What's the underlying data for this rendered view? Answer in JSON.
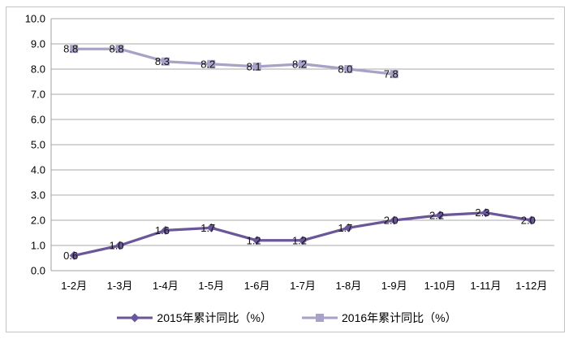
{
  "chart_data": {
    "type": "line",
    "title": "",
    "xlabel": "",
    "ylabel": "",
    "categories": [
      "1-2月",
      "1-3月",
      "1-4月",
      "1-5月",
      "1-6月",
      "1-7月",
      "1-8月",
      "1-9月",
      "1-10月",
      "1-11月",
      "1-12月"
    ],
    "series": [
      {
        "name": "2015年累计同比（%）",
        "values": [
          0.6,
          1.0,
          1.6,
          1.7,
          1.2,
          1.2,
          1.7,
          2.0,
          2.2,
          2.3,
          2.0
        ],
        "color": "#6a5699",
        "marker": "diamond"
      },
      {
        "name": "2016年累计同比（%）",
        "values": [
          8.8,
          8.8,
          8.3,
          8.2,
          8.1,
          8.2,
          8.0,
          7.8
        ],
        "color": "#a8a2c8",
        "marker": "square"
      }
    ],
    "ylim": [
      0,
      10
    ],
    "ytick_step": 1.0,
    "ytick_labels": [
      "0.0",
      "1.0",
      "2.0",
      "3.0",
      "4.0",
      "5.0",
      "6.0",
      "7.0",
      "8.0",
      "9.0",
      "10.0"
    ],
    "grid": true,
    "data_labels": true,
    "legend_position": "bottom"
  },
  "colors": {
    "gridline": "#aaaaaa",
    "axis_line": "#a0a0a0",
    "tick_text": "#000000",
    "data_label_text": "#111111",
    "frame_border": "#c4c4c4",
    "background": "#ffffff"
  }
}
